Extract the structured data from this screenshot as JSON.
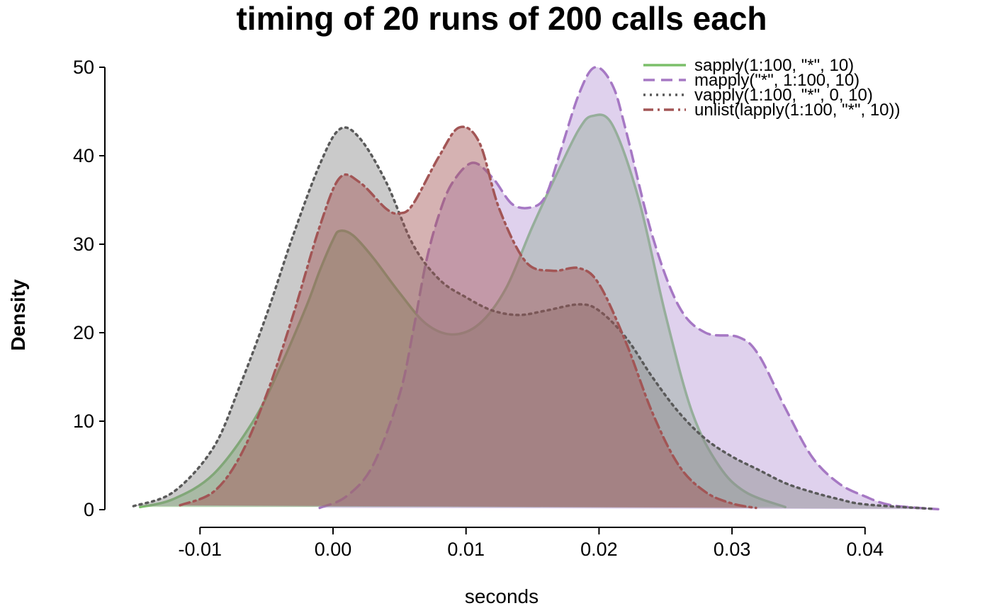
{
  "chart_data": {
    "type": "area",
    "title": "timing of 20 runs of 200 calls each",
    "xlabel": "seconds",
    "ylabel": "Density",
    "xlim": [
      -0.017,
      0.046
    ],
    "ylim": [
      0,
      50
    ],
    "xticks": [
      -0.01,
      0.0,
      0.01,
      0.02,
      0.03,
      0.04
    ],
    "xtick_labels": [
      "-0.01",
      "0.00",
      "0.01",
      "0.02",
      "0.03",
      "0.04"
    ],
    "yticks": [
      0,
      10,
      20,
      30,
      40,
      50
    ],
    "ytick_labels": [
      "0",
      "10",
      "20",
      "30",
      "40",
      "50"
    ],
    "grid": false,
    "legend_position": "top-right",
    "series": [
      {
        "name": "sapply(1:100, \"*\", 10)",
        "color": "#7bbf6a",
        "fill": "#7bbf6a",
        "dash": "solid",
        "points": [
          [
            -0.0145,
            0.3
          ],
          [
            -0.012,
            1.2
          ],
          [
            -0.009,
            4
          ],
          [
            -0.006,
            10
          ],
          [
            -0.004,
            16
          ],
          [
            -0.002,
            23
          ],
          [
            -0.001,
            27
          ],
          [
            0.0,
            30.5
          ],
          [
            0.0005,
            31.5
          ],
          [
            0.0015,
            31
          ],
          [
            0.003,
            28.5
          ],
          [
            0.005,
            24.5
          ],
          [
            0.007,
            21
          ],
          [
            0.009,
            19.8
          ],
          [
            0.011,
            21
          ],
          [
            0.013,
            25
          ],
          [
            0.015,
            32
          ],
          [
            0.017,
            38.5
          ],
          [
            0.0185,
            43
          ],
          [
            0.0195,
            44.5
          ],
          [
            0.021,
            43.5
          ],
          [
            0.023,
            35
          ],
          [
            0.025,
            22
          ],
          [
            0.027,
            11
          ],
          [
            0.029,
            5
          ],
          [
            0.031,
            2
          ],
          [
            0.034,
            0.3
          ]
        ]
      },
      {
        "name": "mapply(\"*\", 1:100, 10)",
        "color": "#a678c4",
        "fill": "#b89ad6",
        "dash": "dashed",
        "points": [
          [
            -0.001,
            0.2
          ],
          [
            0.001,
            1.5
          ],
          [
            0.003,
            5
          ],
          [
            0.005,
            13
          ],
          [
            0.006,
            20
          ],
          [
            0.007,
            28
          ],
          [
            0.008,
            33.5
          ],
          [
            0.009,
            37
          ],
          [
            0.0105,
            39.2
          ],
          [
            0.012,
            37.5
          ],
          [
            0.0135,
            34.5
          ],
          [
            0.015,
            34.2
          ],
          [
            0.016,
            35.5
          ],
          [
            0.017,
            40
          ],
          [
            0.0185,
            47
          ],
          [
            0.0197,
            50
          ],
          [
            0.021,
            48
          ],
          [
            0.022,
            43
          ],
          [
            0.024,
            31
          ],
          [
            0.026,
            23
          ],
          [
            0.028,
            20
          ],
          [
            0.0305,
            19.5
          ],
          [
            0.032,
            17.5
          ],
          [
            0.034,
            11.5
          ],
          [
            0.036,
            6
          ],
          [
            0.038,
            3
          ],
          [
            0.04,
            1.5
          ],
          [
            0.042,
            0.5
          ],
          [
            0.0455,
            0.05
          ]
        ]
      },
      {
        "name": "vapply(1:100, \"*\", 0, 10)",
        "color": "#5a5a5a",
        "fill": "#8a8a8a",
        "dash": "dotted",
        "points": [
          [
            -0.015,
            0.4
          ],
          [
            -0.012,
            2
          ],
          [
            -0.009,
            7
          ],
          [
            -0.007,
            14
          ],
          [
            -0.005,
            22
          ],
          [
            -0.003,
            31
          ],
          [
            -0.001,
            39
          ],
          [
            0.0005,
            43
          ],
          [
            0.002,
            42
          ],
          [
            0.004,
            37
          ],
          [
            0.006,
            30
          ],
          [
            0.008,
            26
          ],
          [
            0.01,
            24
          ],
          [
            0.012,
            22.5
          ],
          [
            0.014,
            22
          ],
          [
            0.016,
            22.5
          ],
          [
            0.0185,
            23.2
          ],
          [
            0.02,
            22.5
          ],
          [
            0.022,
            19.5
          ],
          [
            0.024,
            15
          ],
          [
            0.026,
            11
          ],
          [
            0.028,
            8
          ],
          [
            0.03,
            6
          ],
          [
            0.032,
            4.5
          ],
          [
            0.034,
            3
          ],
          [
            0.036,
            2
          ],
          [
            0.038,
            1.2
          ],
          [
            0.04,
            0.6
          ],
          [
            0.045,
            0.1
          ]
        ]
      },
      {
        "name": "unlist(lapply(1:100, \"*\", 10))",
        "color": "#a25555",
        "fill": "#a25555",
        "dash": "dotdash",
        "points": [
          [
            -0.0115,
            0.5
          ],
          [
            -0.009,
            2
          ],
          [
            -0.007,
            6
          ],
          [
            -0.005,
            13
          ],
          [
            -0.003,
            22
          ],
          [
            -0.001,
            32
          ],
          [
            0.0005,
            37.5
          ],
          [
            0.002,
            37
          ],
          [
            0.004,
            34
          ],
          [
            0.005,
            33.5
          ],
          [
            0.006,
            34.5
          ],
          [
            0.008,
            40
          ],
          [
            0.0095,
            43.2
          ],
          [
            0.011,
            41.5
          ],
          [
            0.0125,
            34
          ],
          [
            0.0145,
            28
          ],
          [
            0.0165,
            27
          ],
          [
            0.0185,
            27.3
          ],
          [
            0.02,
            25.5
          ],
          [
            0.022,
            19
          ],
          [
            0.024,
            11
          ],
          [
            0.026,
            5
          ],
          [
            0.028,
            2
          ],
          [
            0.03,
            0.7
          ],
          [
            0.0318,
            0.2
          ]
        ]
      }
    ]
  }
}
